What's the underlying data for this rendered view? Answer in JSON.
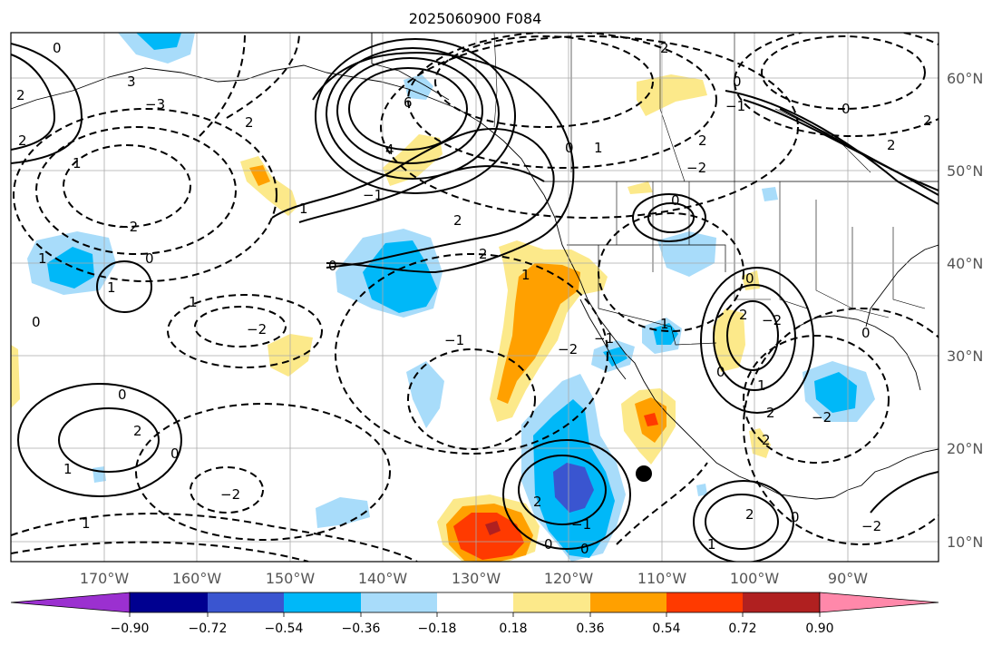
{
  "title": "2025060900 F084",
  "lat_labels": [
    "60°N",
    "50°N",
    "40°N",
    "30°N",
    "20°N",
    "10°N"
  ],
  "lon_labels": [
    "170°W",
    "160°W",
    "150°W",
    "140°W",
    "130°W",
    "120°W",
    "110°W",
    "100°W",
    "90°W"
  ],
  "colorbar": {
    "ticks": [
      "−0.90",
      "−0.72",
      "−0.54",
      "−0.36",
      "−0.18",
      "0.18",
      "0.36",
      "0.54",
      "0.72",
      "0.90"
    ],
    "colors": [
      "#9b30d0",
      "#000090",
      "#3a55d0",
      "#00b8f8",
      "#a8dcfa",
      "#ffffff",
      "#fce98a",
      "#ffa000",
      "#ff3a00",
      "#b02020",
      "#ff88aa"
    ]
  },
  "shade_colors": {
    "light_blue": "#a8dcfa",
    "blue": "#00b8f8",
    "mid_blue": "#3a55d0",
    "yellow": "#fce98a",
    "orange": "#ffa000",
    "red": "#ff3a00",
    "dark_red": "#b02020"
  },
  "contour_labels": [
    "0",
    "2",
    "3",
    "6",
    "4",
    "1",
    "−1",
    "−2",
    "−3",
    "0",
    "1",
    "2",
    "0",
    "−1",
    "2",
    "0",
    "1",
    "2",
    "−2",
    "0",
    "1",
    "2",
    "−2",
    "0",
    "−1",
    "2",
    "0",
    "−2",
    "1",
    "2",
    "0",
    "1",
    "−2",
    "−2",
    "2",
    "0",
    "1",
    "−2",
    "0",
    "−1",
    "2",
    "1",
    "1",
    "−2",
    "0",
    "0",
    "2",
    "−1",
    "2",
    "0",
    "2",
    "0",
    "1",
    "2",
    "1",
    "0",
    "0",
    "2",
    "1",
    "2"
  ],
  "marker": "filled-circle"
}
